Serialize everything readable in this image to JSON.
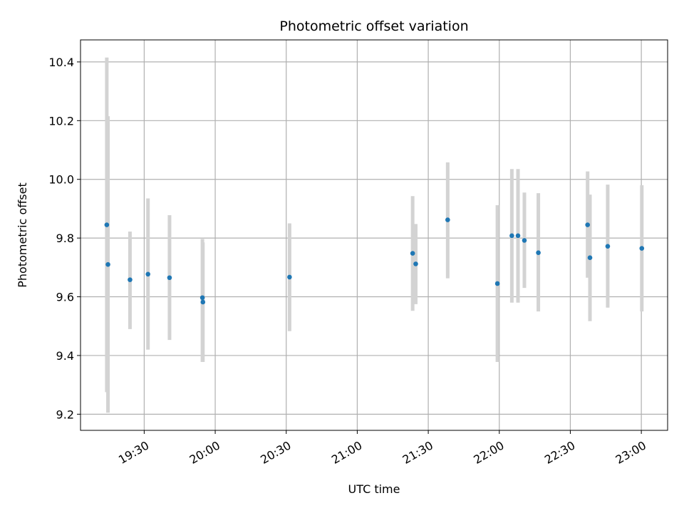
{
  "chart_data": {
    "type": "scatter",
    "title": "Photometric offset variation",
    "xlabel": "UTC time",
    "ylabel": "Photometric offset",
    "x_tick_labels": [
      "19:30",
      "20:00",
      "20:30",
      "21:00",
      "21:30",
      "22:00",
      "22:30",
      "23:00"
    ],
    "x_ticks_min": [
      1170,
      1200,
      1230,
      1260,
      1290,
      1320,
      1350,
      1380
    ],
    "xlim_min": [
      1143.1,
      1391.1
    ],
    "y_ticks": [
      9.2,
      9.4,
      9.6,
      9.8,
      10.0,
      10.2,
      10.4
    ],
    "ylim": [
      9.145,
      10.475
    ],
    "grid": true,
    "legend": "none",
    "colors": {
      "point": "#1f77b4",
      "errorbar": "#d3d3d3",
      "grid": "#b0b0b0"
    },
    "points": [
      {
        "t": "19:14",
        "x": 1154.2,
        "y": 9.845,
        "ylow": 9.275,
        "yhigh": 10.415
      },
      {
        "t": "19:15",
        "x": 1154.7,
        "y": 9.71,
        "ylow": 9.205,
        "yhigh": 10.215
      },
      {
        "t": "19:24",
        "x": 1164.0,
        "y": 9.658,
        "ylow": 9.49,
        "yhigh": 9.822
      },
      {
        "t": "19:31",
        "x": 1171.6,
        "y": 9.677,
        "ylow": 9.42,
        "yhigh": 9.935
      },
      {
        "t": "19:40",
        "x": 1180.7,
        "y": 9.665,
        "ylow": 9.453,
        "yhigh": 9.878
      },
      {
        "t": "19:54",
        "x": 1194.6,
        "y": 9.597,
        "ylow": 9.378,
        "yhigh": 9.797
      },
      {
        "t": "19:55",
        "x": 1194.8,
        "y": 9.582,
        "ylow": 9.378,
        "yhigh": 9.785
      },
      {
        "t": "20:31",
        "x": 1231.4,
        "y": 9.667,
        "ylow": 9.483,
        "yhigh": 9.85
      },
      {
        "t": "21:24",
        "x": 1283.4,
        "y": 9.748,
        "ylow": 9.552,
        "yhigh": 9.943
      },
      {
        "t": "21:25",
        "x": 1284.7,
        "y": 9.712,
        "ylow": 9.575,
        "yhigh": 9.848
      },
      {
        "t": "21:38",
        "x": 1298.2,
        "y": 9.862,
        "ylow": 9.663,
        "yhigh": 10.058
      },
      {
        "t": "21:59",
        "x": 1319.2,
        "y": 9.645,
        "ylow": 9.378,
        "yhigh": 9.912
      },
      {
        "t": "22:06",
        "x": 1325.3,
        "y": 9.808,
        "ylow": 9.58,
        "yhigh": 10.035
      },
      {
        "t": "22:08",
        "x": 1327.9,
        "y": 9.808,
        "ylow": 9.58,
        "yhigh": 10.035
      },
      {
        "t": "22:11",
        "x": 1330.6,
        "y": 9.792,
        "ylow": 9.63,
        "yhigh": 9.955
      },
      {
        "t": "22:17",
        "x": 1336.5,
        "y": 9.75,
        "ylow": 9.55,
        "yhigh": 9.953
      },
      {
        "t": "22:37",
        "x": 1357.3,
        "y": 9.845,
        "ylow": 9.665,
        "yhigh": 10.027
      },
      {
        "t": "22:38",
        "x": 1358.3,
        "y": 9.733,
        "ylow": 9.517,
        "yhigh": 9.948
      },
      {
        "t": "22:45",
        "x": 1365.8,
        "y": 9.772,
        "ylow": 9.563,
        "yhigh": 9.982
      },
      {
        "t": "23:00",
        "x": 1380.2,
        "y": 9.765,
        "ylow": 9.55,
        "yhigh": 9.98
      }
    ]
  }
}
